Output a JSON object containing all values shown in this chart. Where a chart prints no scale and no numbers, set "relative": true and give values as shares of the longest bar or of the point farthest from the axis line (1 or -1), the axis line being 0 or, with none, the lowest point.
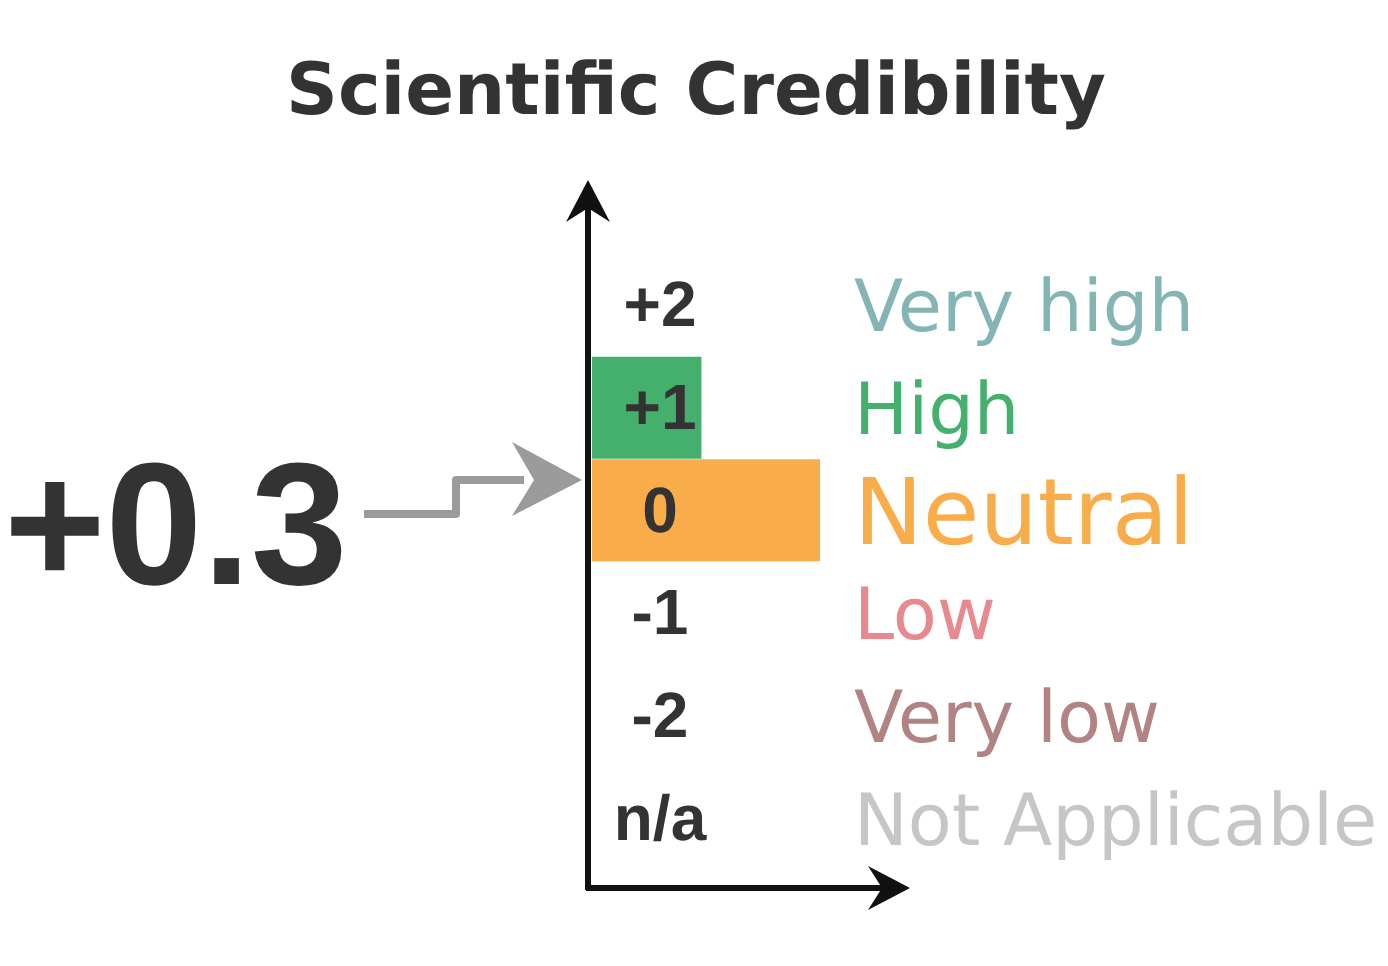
{
  "chart_data": {
    "type": "bar",
    "orientation": "horizontal",
    "title": "Scientific Credibility",
    "categories": [
      "+2",
      "+1",
      "0",
      "-1",
      "-2",
      "n/a"
    ],
    "y2_categories": [
      "Very high",
      "High",
      "Neutral",
      "Low",
      "Very low",
      "Not Applicable"
    ],
    "values": [
      0,
      0.48,
      1,
      0,
      0,
      0
    ],
    "colors": [
      "#84b5b4",
      "#45b06e",
      "#f8ac4a",
      "#e8898f",
      "#b18383",
      "#c6c6c6"
    ],
    "relative": true,
    "annotations": [
      "+0.3"
    ]
  }
}
